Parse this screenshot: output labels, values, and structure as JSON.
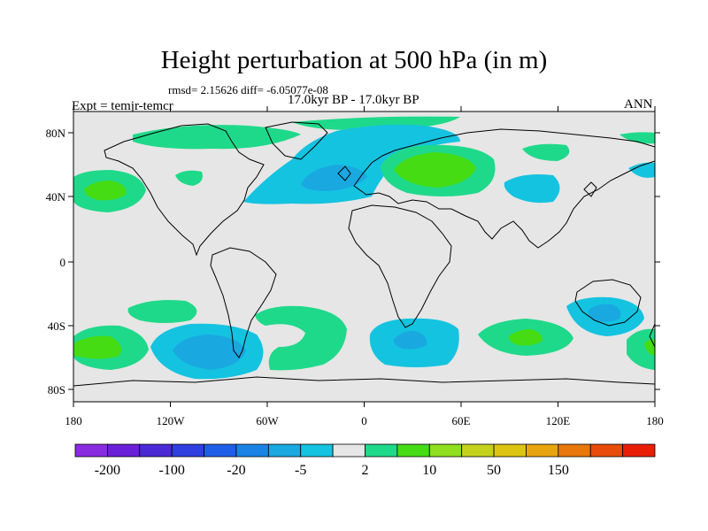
{
  "title": "Height perturbation at 500 hPa (in m)",
  "subtitle_stats": "rmsd= 2.15626 diff= -6.05077e-08",
  "period": "17.0kyr BP - 17.0kyr BP",
  "experiment": "Expt = temjr-temcr",
  "season": "ANN",
  "map": {
    "lat_ticks": [
      "80N",
      "40N",
      "0",
      "40S",
      "80S"
    ],
    "lon_ticks": [
      "180",
      "120W",
      "60W",
      "0",
      "60E",
      "120E",
      "180"
    ],
    "ocean_color": "#e6e6e6"
  },
  "colorbar": {
    "colors": [
      "#8a2be2",
      "#6a1fd8",
      "#4b2ad6",
      "#2f3fe0",
      "#1f5ee6",
      "#1a84e6",
      "#19a8e0",
      "#14c3e0",
      "#e6e6e6",
      "#1fd98a",
      "#46dc14",
      "#8fe020",
      "#c5d21c",
      "#ddc412",
      "#e8a40e",
      "#e8780c",
      "#e84c08",
      "#e81e06"
    ],
    "labels": [
      "-200",
      "-100",
      "-20",
      "-5",
      "2",
      "10",
      "50",
      "150"
    ],
    "label_positions": [
      1,
      3,
      5,
      7,
      9,
      11,
      13,
      15
    ]
  },
  "anomalies": [
    {
      "region": "North Atlantic",
      "sign": "negative",
      "level": "-5 to -20"
    },
    {
      "region": "Eurasia",
      "sign": "positive",
      "level": "2 to 10"
    },
    {
      "region": "Southern Ocean (South Pacific)",
      "sign": "negative",
      "level": "-5 to -20"
    },
    {
      "region": "Southern Ocean (South Atlantic/Indian)",
      "sign": "negative",
      "level": "-5"
    },
    {
      "region": "Australia",
      "sign": "negative",
      "level": "-5"
    }
  ]
}
